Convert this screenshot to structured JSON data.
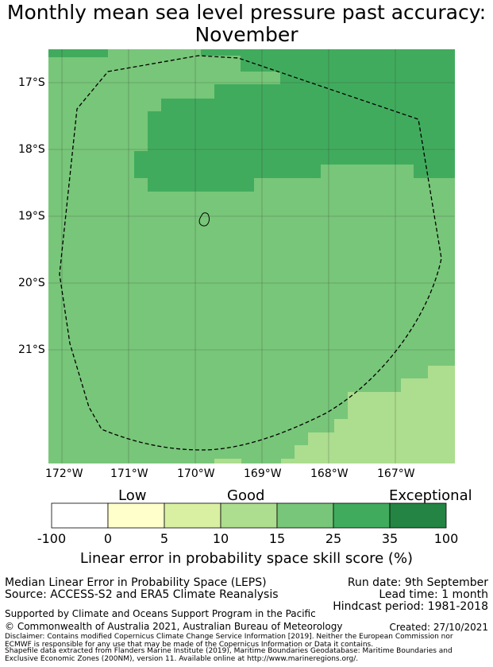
{
  "title_line1": "Monthly mean sea level pressure past accuracy:",
  "title_line2": "November",
  "map": {
    "lon_ticks": [
      "172°W",
      "171°W",
      "170°W",
      "169°W",
      "168°W",
      "167°W"
    ],
    "lat_ticks": [
      "17°S",
      "18°S",
      "19°S",
      "20°S",
      "21°S"
    ]
  },
  "legend": {
    "category_labels": [
      "Low",
      "Good",
      "Exceptional"
    ],
    "bounds": [
      "-100",
      "0",
      "5",
      "10",
      "15",
      "25",
      "35",
      "100"
    ],
    "colors": [
      "#ffffff",
      "#ffffcc",
      "#d9f0a3",
      "#addd8e",
      "#78c679",
      "#41ab5d",
      "#238443"
    ],
    "title": "Linear error in probability space skill score (%)"
  },
  "info": {
    "method": "Median Linear Error in Probability Space (LEPS)",
    "source": "Source: ACCESS-S2 and ERA5 Climate Reanalysis",
    "run_date": "Run date: 9th September",
    "lead_time": "Lead time: 1 month",
    "hindcast": "Hindcast period: 1981-2018",
    "support": "Supported by Climate and Oceans Support Program in the Pacific",
    "copyright": "© Commonwealth of Australia 2021, Australian Bureau of Meteorology",
    "created": "Created: 27/10/2021",
    "disclaimer1": "Disclaimer: Contains modified Copernicus Climate Change Service Information [2019]. Neither the European Commission nor",
    "disclaimer2": "ECMWF is responsible for any use that may be made of the Copernicus Information or Data it contains.",
    "disclaimer3": "Shapefile data extracted from Flanders Marine Institute (2019), Maritime Boundaries Geodatabase: Maritime Boundaries and",
    "disclaimer4": "Exclusive Economic Zones (200NM), version 11. Available online at http://www.marineregions.org/."
  }
}
